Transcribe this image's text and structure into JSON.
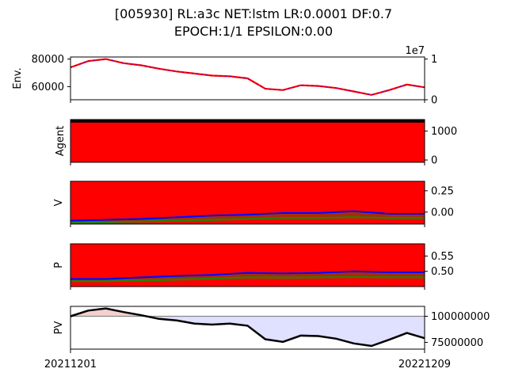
{
  "figure": {
    "title_line1": "[005930] RL:a3c NET:lstm LR:0.0001 DF:0.7",
    "title_line2": "EPOCH:1/1 EPSILON:0.00"
  },
  "colors": {
    "red": "#ff0000",
    "blue": "#0000ff",
    "green": "#2e7d00",
    "black": "#000000",
    "pv_fill_below": "#e0e0ff",
    "pv_fill_above": "#f5d0d0",
    "baseline": "#888888"
  },
  "x_axis": {
    "start_label": "20211201",
    "end_label": "20221209"
  },
  "chart_data": [
    {
      "type": "line",
      "name": "env",
      "ylabel": "Env.",
      "left_ticks": [
        60000,
        80000
      ],
      "right_ticks": [
        0,
        1
      ],
      "right_offset_label": "1e7",
      "ylim": [
        50500,
        81500
      ],
      "x": [
        0,
        5,
        10,
        15,
        20,
        25,
        30,
        35,
        40,
        45,
        50,
        55,
        60,
        65,
        70,
        75,
        80,
        85,
        90,
        95,
        100
      ],
      "values": [
        74000,
        78500,
        80000,
        77000,
        75500,
        73000,
        71000,
        69500,
        68000,
        67500,
        66000,
        58500,
        57500,
        61000,
        60500,
        59000,
        56500,
        54000,
        57500,
        61500,
        59500
      ]
    },
    {
      "type": "area",
      "name": "agent",
      "ylabel": "Agent",
      "right_ticks": [
        0,
        1000
      ],
      "ylim": [
        -80,
        1400
      ],
      "level": 1350
    },
    {
      "type": "line",
      "name": "value",
      "ylabel": "V",
      "right_ticks": [
        "0.00",
        "0.25"
      ],
      "ylim": [
        -0.14,
        0.36
      ],
      "x": [
        0,
        10,
        20,
        30,
        40,
        50,
        60,
        70,
        80,
        90,
        100
      ],
      "series_blue": [
        -0.1,
        -0.09,
        -0.08,
        -0.06,
        -0.04,
        -0.03,
        -0.01,
        -0.01,
        0.01,
        -0.02,
        -0.02
      ],
      "series_green": [
        -0.12,
        -0.12,
        -0.11,
        -0.1,
        -0.09,
        -0.08,
        -0.07,
        -0.07,
        -0.06,
        -0.07,
        -0.07
      ]
    },
    {
      "type": "line",
      "name": "policy",
      "ylabel": "P",
      "right_ticks": [
        "0.50",
        "0.55"
      ],
      "ylim": [
        0.45,
        0.59
      ],
      "x": [
        0,
        10,
        20,
        30,
        40,
        50,
        60,
        70,
        80,
        90,
        100
      ],
      "series_blue": [
        0.475,
        0.475,
        0.48,
        0.485,
        0.488,
        0.495,
        0.493,
        0.495,
        0.5,
        0.497,
        0.497
      ],
      "series_green": [
        0.468,
        0.468,
        0.47,
        0.473,
        0.476,
        0.48,
        0.479,
        0.48,
        0.481,
        0.48,
        0.48
      ]
    },
    {
      "type": "area",
      "name": "pv",
      "ylabel": "PV",
      "right_ticks": [
        "75000000",
        "100000000"
      ],
      "ylim": [
        68500000,
        109500000
      ],
      "baseline": 100000000,
      "x": [
        0,
        5,
        10,
        15,
        20,
        25,
        30,
        35,
        40,
        45,
        50,
        55,
        60,
        65,
        70,
        75,
        80,
        85,
        90,
        95,
        100
      ],
      "values": [
        100000000,
        105500000,
        107500000,
        104000000,
        101000000,
        97500000,
        96000000,
        93000000,
        92000000,
        93000000,
        91000000,
        78000000,
        75500000,
        81500000,
        81000000,
        78500000,
        74000000,
        71500000,
        77500000,
        84000000,
        79000000
      ]
    }
  ]
}
